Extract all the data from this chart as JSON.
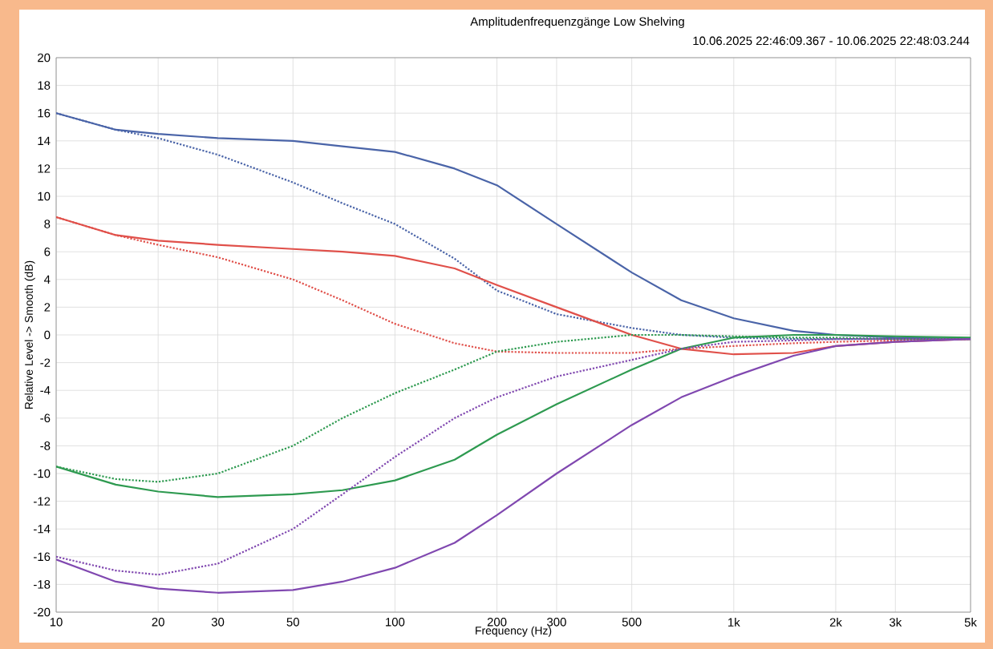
{
  "chart_data": {
    "type": "line",
    "title": "Amplitudenfrequenzgänge Low Shelving",
    "subtitle": "10.06.2025 22:46:09.367 - 10.06.2025 22:48:03.244",
    "xlabel": "Frequency (Hz)",
    "ylabel": "Relative Level -> Smooth (dB)",
    "log": "x",
    "grid": true,
    "x": [
      10,
      15,
      20,
      30,
      50,
      70,
      100,
      150,
      200,
      300,
      500,
      700,
      1000,
      1500,
      2000,
      3000,
      5000
    ],
    "series": [
      {
        "color": "#4a64a8",
        "line_style": "solid",
        "values": [
          16,
          14.8,
          14.5,
          14.2,
          14,
          13.6,
          13.2,
          12,
          10.8,
          8,
          4.5,
          2.5,
          1.2,
          0.3,
          0,
          -0.2,
          -0.3
        ]
      },
      {
        "color": "#4a64a8",
        "line_style": "dotted",
        "values": [
          16,
          14.8,
          14.2,
          13,
          11,
          9.5,
          8,
          5.5,
          3.2,
          1.5,
          0.5,
          0,
          -0.2,
          -0.3,
          -0.3,
          -0.3,
          -0.3
        ]
      },
      {
        "color": "#e0504a",
        "line_style": "solid",
        "values": [
          8.5,
          7.2,
          6.8,
          6.5,
          6.2,
          6,
          5.7,
          4.8,
          3.6,
          2,
          0,
          -1,
          -1.4,
          -1.3,
          -0.8,
          -0.5,
          -0.3
        ]
      },
      {
        "color": "#e0504a",
        "line_style": "dotted",
        "values": [
          8.5,
          7.2,
          6.5,
          5.6,
          4,
          2.5,
          0.8,
          -0.6,
          -1.2,
          -1.3,
          -1.3,
          -1,
          -0.8,
          -0.6,
          -0.5,
          -0.4,
          -0.3
        ]
      },
      {
        "color": "#2e9a50",
        "line_style": "solid",
        "values": [
          -9.5,
          -10.8,
          -11.3,
          -11.7,
          -11.5,
          -11.2,
          -10.5,
          -9,
          -7.2,
          -5,
          -2.5,
          -1,
          -0.2,
          0,
          0,
          -0.1,
          -0.2
        ]
      },
      {
        "color": "#2e9a50",
        "line_style": "dotted",
        "values": [
          -9.5,
          -10.4,
          -10.6,
          -10,
          -8,
          -6,
          -4.2,
          -2.5,
          -1.2,
          -0.5,
          0,
          0,
          -0.1,
          -0.2,
          -0.2,
          -0.3,
          -0.3
        ]
      },
      {
        "color": "#8048b0",
        "line_style": "solid",
        "values": [
          -16.2,
          -17.8,
          -18.3,
          -18.6,
          -18.4,
          -17.8,
          -16.8,
          -15,
          -13,
          -10,
          -6.5,
          -4.5,
          -3,
          -1.5,
          -0.8,
          -0.5,
          -0.3
        ]
      },
      {
        "color": "#8048b0",
        "line_style": "dotted",
        "values": [
          -16,
          -17,
          -17.3,
          -16.5,
          -14,
          -11.5,
          -8.8,
          -6,
          -4.5,
          -3,
          -1.8,
          -1,
          -0.5,
          -0.4,
          -0.3,
          -0.3,
          -0.3
        ]
      }
    ],
    "xlim": [
      10,
      5000
    ],
    "ylim": [
      -20,
      20
    ],
    "xticks": [
      10,
      20,
      30,
      50,
      100,
      200,
      300,
      500,
      {
        "value": 1000,
        "label": "1k"
      },
      {
        "value": 2000,
        "label": "2k"
      },
      {
        "value": 3000,
        "label": "3k"
      },
      {
        "value": 5000,
        "label": "5k"
      }
    ],
    "yticks": [
      -20,
      -18,
      -16,
      -14,
      -12,
      -10,
      -8,
      -6,
      -4,
      -2,
      0,
      2,
      4,
      6,
      8,
      10,
      12,
      14,
      16,
      18,
      20
    ]
  }
}
